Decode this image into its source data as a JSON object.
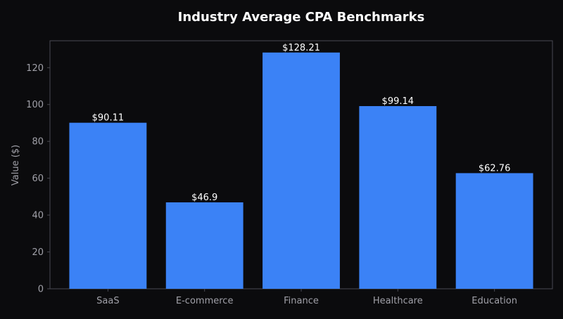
{
  "chart_data": {
    "type": "bar",
    "title": "Industry Average CPA Benchmarks",
    "xlabel": "",
    "ylabel": "Value ($)",
    "categories": [
      "SaaS",
      "E-commerce",
      "Finance",
      "Healthcare",
      "Education"
    ],
    "values": [
      90.11,
      46.9,
      128.21,
      99.14,
      62.76
    ],
    "value_labels": [
      "$90.11",
      "$46.9",
      "$128.21",
      "$99.14",
      "$62.76"
    ],
    "ylim": [
      0,
      134.6
    ],
    "yticks": [
      0,
      20,
      40,
      60,
      80,
      100,
      120
    ],
    "grid": false,
    "legend": "none",
    "colors": {
      "background": "#0b0b0d",
      "bar": "#3b82f6",
      "axis": "#4a4a52",
      "tick_text": "#a0a0a8",
      "title_text": "#ffffff",
      "data_label_text": "#ffffff"
    }
  }
}
